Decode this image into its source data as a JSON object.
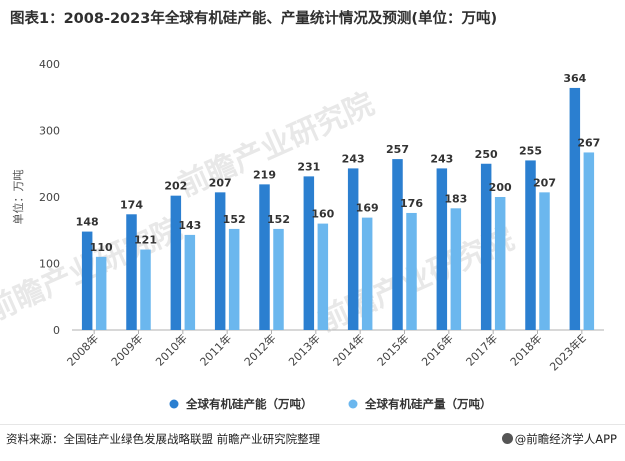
{
  "title": "图表1：2008-2023年全球有机硅产能、产量统计情况及预测(单位：万吨)",
  "source": {
    "label": "资料来源：",
    "orgs": "全国硅产业绿色发展战略联盟 前瞻产业研究院整理"
  },
  "brand": "@前瞻经济学人APP",
  "watermark": "前瞻产业研究院",
  "colors": {
    "capacity": "#2b7fd0",
    "output": "#6bb7ee"
  },
  "chart_data": {
    "type": "bar",
    "categories": [
      "2008年",
      "2009年",
      "2010年",
      "2011年",
      "2012年",
      "2013年",
      "2014年",
      "2015年",
      "2016年",
      "2017年",
      "2018年",
      "2023年E"
    ],
    "series": [
      {
        "name": "全球有机硅产能（万吨）",
        "values": [
          148,
          174,
          202,
          207,
          219,
          231,
          243,
          257,
          243,
          250,
          255,
          364
        ]
      },
      {
        "name": "全球有机硅产量（万吨）",
        "values": [
          110,
          121,
          143,
          152,
          152,
          160,
          169,
          176,
          183,
          200,
          207,
          267
        ]
      }
    ],
    "ylabel": "单位：万吨",
    "xlabel": "",
    "ylim": [
      0,
      400
    ],
    "yticks": [
      "0",
      "100",
      "200",
      "300",
      "400"
    ],
    "legend_position": "bottom",
    "grid": false
  }
}
